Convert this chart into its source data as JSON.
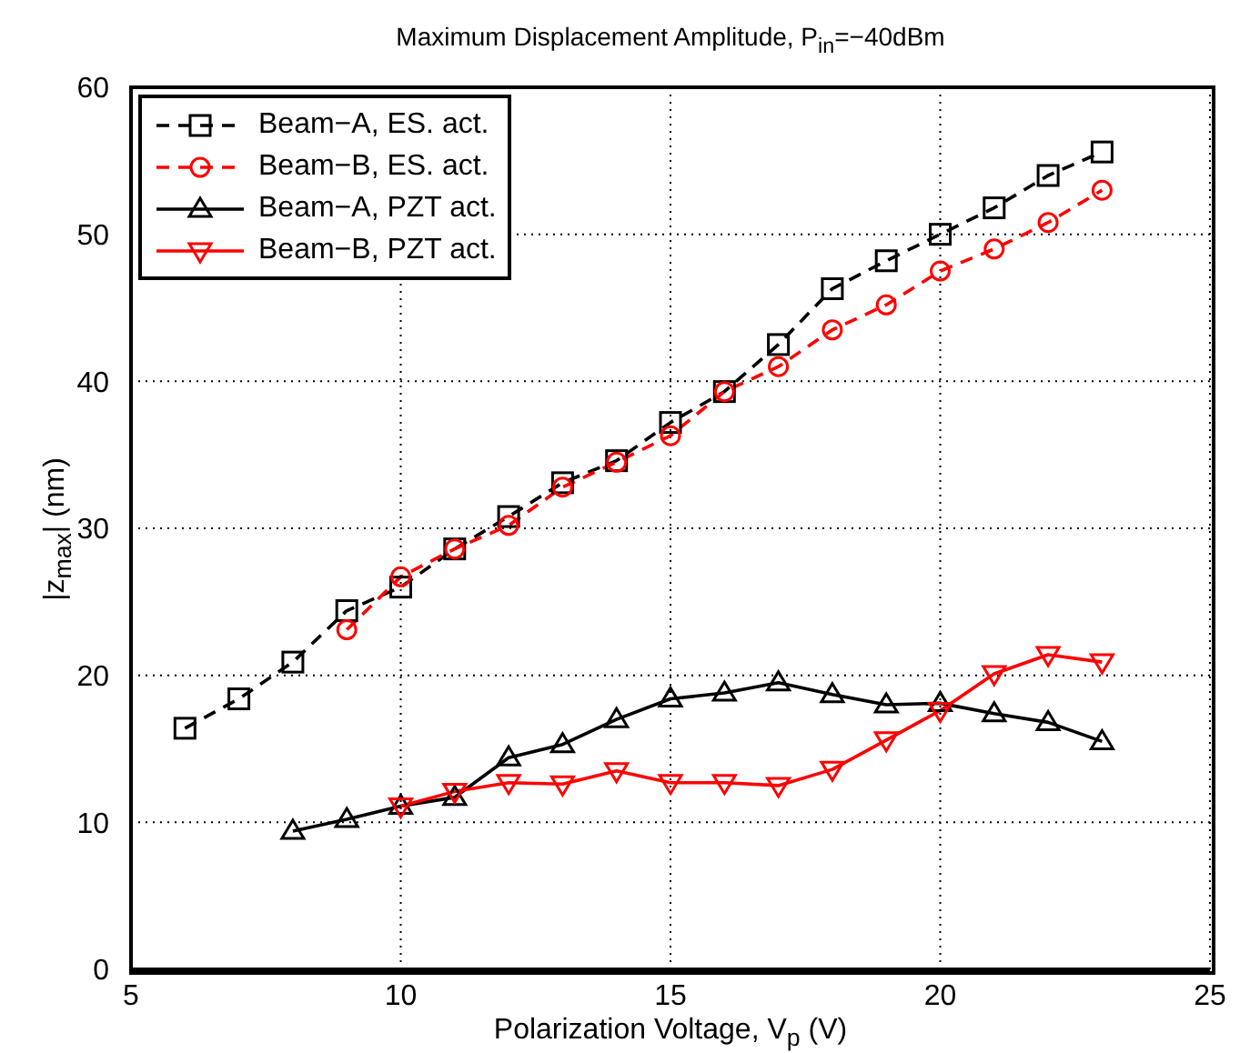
{
  "chart_data": {
    "type": "line",
    "title": "Maximum Displacement Amplitude, P$_{in}$=−40dBm",
    "xlabel": "Polarization Voltage, V$_{p}$ (V)",
    "ylabel": "|z$_{max}$| (nm)",
    "xlim": [
      5,
      25
    ],
    "xticks": [
      5,
      10,
      15,
      20,
      25
    ],
    "ylim": [
      0,
      60
    ],
    "yticks": [
      0,
      10,
      20,
      30,
      40,
      50,
      60
    ],
    "grid": true,
    "legend": "top left",
    "series": [
      {
        "name": "Beam−A, ES. act.",
        "color": "#000000",
        "marker": "square",
        "line_style": "dashed",
        "x": [
          6,
          7,
          8,
          9,
          10,
          11,
          12,
          13,
          14,
          15,
          16,
          17,
          18,
          19,
          20,
          21,
          22,
          23
        ],
        "values": [
          16.4,
          18.4,
          20.9,
          24.4,
          26,
          28.6,
          30.8,
          33.1,
          34.6,
          37.2,
          39.3,
          42.5,
          46.3,
          48.2,
          50,
          51.8,
          54,
          55.6
        ]
      },
      {
        "name": "Beam−B, ES. act.",
        "color": "#ff0000",
        "marker": "circle",
        "line_style": "dashed",
        "x": [
          9,
          10,
          11,
          12,
          13,
          14,
          15,
          16,
          17,
          18,
          19,
          20,
          21,
          22,
          23
        ],
        "values": [
          23.1,
          26.7,
          28.6,
          30.2,
          32.8,
          34.5,
          36.3,
          39.3,
          41,
          43.5,
          45.2,
          47.5,
          49,
          50.8,
          53
        ]
      },
      {
        "name": "Beam−A, PZT act.",
        "color": "#000000",
        "marker": "triangle",
        "line_style": "solid",
        "x": [
          8,
          9,
          10,
          11,
          12,
          13,
          14,
          15,
          16,
          17,
          18,
          19,
          20,
          21,
          22,
          23
        ],
        "values": [
          9.4,
          10.2,
          11.1,
          11.7,
          14.4,
          15.3,
          17,
          18.4,
          18.8,
          19.5,
          18.7,
          18,
          18.1,
          17.4,
          16.8,
          15.5
        ]
      },
      {
        "name": "Beam−B, PZT act.",
        "color": "#ff0000",
        "marker": "triangle-down",
        "line_style": "solid",
        "x": [
          10,
          11,
          12,
          13,
          14,
          15,
          16,
          17,
          18,
          19,
          20,
          21,
          22,
          23
        ],
        "values": [
          11.1,
          12.1,
          12.7,
          12.6,
          13.5,
          12.7,
          12.7,
          12.5,
          13.6,
          15.6,
          17.6,
          20.1,
          21.4,
          20.9
        ]
      }
    ]
  }
}
